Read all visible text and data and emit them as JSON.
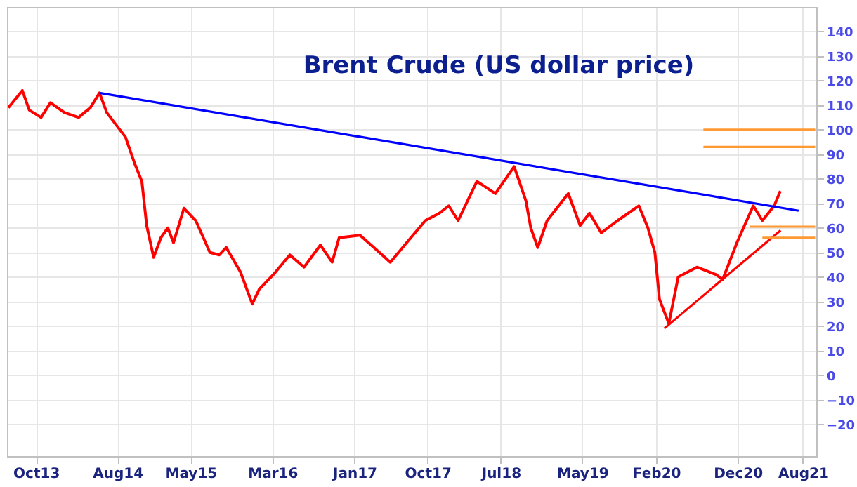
{
  "chart_data": {
    "type": "line",
    "title": "Brent Crude (US dollar price)",
    "xlim": [
      "2013-06-15",
      "2021-09-20"
    ],
    "ylim": [
      -33,
      150
    ],
    "xticks": [
      {
        "value": "2013-10-01",
        "label": "Oct13"
      },
      {
        "value": "2014-08-01",
        "label": "Aug14"
      },
      {
        "value": "2015-05-01",
        "label": "May15"
      },
      {
        "value": "2016-03-01",
        "label": "Mar16"
      },
      {
        "value": "2017-01-01",
        "label": "Jan17"
      },
      {
        "value": "2017-10-01",
        "label": "Oct17"
      },
      {
        "value": "2018-07-01",
        "label": "Jul18"
      },
      {
        "value": "2019-05-01",
        "label": "May19"
      },
      {
        "value": "2020-02-01",
        "label": "Feb20"
      },
      {
        "value": "2020-12-01",
        "label": "Dec20"
      },
      {
        "value": "2021-08-01",
        "label": "Aug21"
      }
    ],
    "yticks": [
      -20,
      -10,
      0,
      10,
      20,
      30,
      40,
      50,
      60,
      70,
      80,
      90,
      100,
      110,
      120,
      130,
      140
    ],
    "grid": true,
    "marker": "none",
    "line_style": "solid",
    "series": [
      {
        "color": "#ff0000",
        "x": [
          "2013-06-20",
          "2013-08-11",
          "2013-09-06",
          "2013-10-20",
          "2013-11-24",
          "2014-01-15",
          "2014-03-09",
          "2014-04-22",
          "2014-05-26",
          "2014-06-22",
          "2014-07-27",
          "2014-08-31",
          "2014-10-05",
          "2014-10-31",
          "2014-11-18",
          "2014-12-14",
          "2015-01-10",
          "2015-02-05",
          "2015-02-26",
          "2015-04-06",
          "2015-05-20",
          "2015-07-12",
          "2015-08-16",
          "2015-09-11",
          "2015-11-03",
          "2015-12-17",
          "2016-01-12",
          "2016-03-05",
          "2016-05-05",
          "2016-06-27",
          "2016-08-27",
          "2016-10-10",
          "2016-11-05",
          "2017-01-22",
          "2017-03-15",
          "2017-05-15",
          "2017-07-15",
          "2017-09-23",
          "2017-11-14",
          "2017-12-19",
          "2018-01-23",
          "2018-04-03",
          "2018-06-11",
          "2018-08-20",
          "2018-10-03",
          "2018-10-21",
          "2018-11-16",
          "2018-12-21",
          "2019-03-10",
          "2019-04-23",
          "2019-05-28",
          "2019-07-11",
          "2019-09-10",
          "2019-11-28",
          "2020-01-01",
          "2020-01-27",
          "2020-02-13",
          "2020-03-19",
          "2020-04-23",
          "2020-07-02",
          "2020-09-10",
          "2020-10-06",
          "2020-11-28",
          "2021-01-28",
          "2021-03-03",
          "2021-04-16",
          "2021-05-09"
        ],
        "values": [
          109,
          116,
          108,
          105,
          111,
          107,
          105,
          109,
          115,
          107,
          102,
          97,
          86,
          79,
          61,
          48,
          56,
          60,
          54,
          68,
          63,
          50,
          49,
          52,
          42,
          29,
          35,
          41,
          49,
          44,
          53,
          46,
          56,
          57,
          52,
          46,
          54,
          63,
          66,
          69,
          63,
          79,
          74,
          85,
          71,
          60,
          52,
          63,
          74,
          61,
          66,
          58,
          63,
          69,
          60,
          50,
          31,
          21,
          40,
          44,
          41,
          39,
          54,
          69,
          63,
          69,
          75
        ]
      },
      {
        "color": "#0000ff",
        "x": [
          "2014-05-26",
          "2021-07-16"
        ],
        "values": [
          115,
          67
        ]
      },
      {
        "color": "#ff0000",
        "x": [
          "2020-03-02",
          "2021-05-10"
        ],
        "values": [
          19,
          59
        ]
      },
      {
        "color": "#ff9933",
        "x": [
          "2020-07-26",
          "2021-09-16"
        ],
        "values": [
          100,
          100
        ]
      },
      {
        "color": "#ff9933",
        "x": [
          "2020-07-26",
          "2021-09-16"
        ],
        "values": [
          93,
          93
        ]
      },
      {
        "color": "#ff9933",
        "x": [
          "2021-01-15",
          "2021-09-16"
        ],
        "values": [
          60.5,
          60.5
        ]
      },
      {
        "color": "#ff9933",
        "x": [
          "2021-03-03",
          "2021-09-16"
        ],
        "values": [
          56,
          56
        ]
      }
    ]
  }
}
